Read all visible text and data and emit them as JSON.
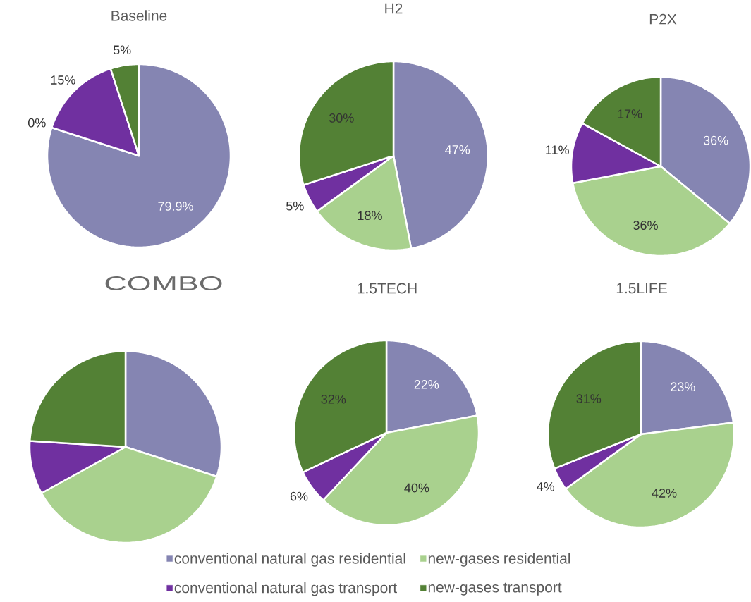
{
  "chart_data": [
    {
      "type": "pie",
      "title": "Baseline",
      "categories": [
        null,
        null,
        null,
        null
      ],
      "values": [
        79.9,
        0,
        15,
        5
      ],
      "colors": [
        "#8585b2",
        "#a9d18e",
        "#7030a0",
        "#538135"
      ],
      "value_labels": [
        "79.9%",
        "0%",
        "15%",
        "5%"
      ]
    },
    {
      "type": "pie",
      "title": "H2",
      "categories": [
        null,
        null,
        null,
        null
      ],
      "values": [
        47,
        18,
        5,
        30
      ],
      "colors": [
        "#8585b2",
        "#a9d18e",
        "#7030a0",
        "#538135"
      ],
      "value_labels": [
        "47%",
        "18%",
        "5%",
        "30%"
      ]
    },
    {
      "type": "pie",
      "title": "P2X",
      "categories": [
        null,
        null,
        null,
        null
      ],
      "values": [
        36,
        36,
        11,
        17
      ],
      "colors": [
        "#8585b2",
        "#a9d18e",
        "#7030a0",
        "#538135"
      ],
      "value_labels": [
        "36%",
        "36%",
        "11%",
        "17%"
      ]
    },
    {
      "type": "pie",
      "title": "COMBO",
      "categories": [
        null,
        null,
        null,
        null
      ],
      "values": [
        30,
        37,
        9,
        24
      ],
      "colors": [
        "#8585b2",
        "#a9d18e",
        "#7030a0",
        "#538135"
      ]
    },
    {
      "type": "pie",
      "title": "1.5TECH",
      "categories": [
        "conventional natural gas residential",
        "new-gases residential",
        "conventional natural gas transport",
        "new-gases transport"
      ],
      "values": [
        22,
        40,
        6,
        32
      ],
      "colors": [
        "#8585b2",
        "#a9d18e",
        "#7030a0",
        "#538135"
      ],
      "value_labels": [
        "22%",
        "40%",
        "6%",
        "32%"
      ],
      "legend": "bottom"
    },
    {
      "type": "pie",
      "title": "1.5LIFE",
      "categories": [
        null,
        null,
        null,
        null
      ],
      "values": [
        23,
        42,
        4,
        31
      ],
      "colors": [
        "#8585b2",
        "#a9d18e",
        "#7030a0",
        "#538135"
      ],
      "value_labels": [
        "23%",
        "42%",
        "4%",
        "31%"
      ]
    }
  ]
}
